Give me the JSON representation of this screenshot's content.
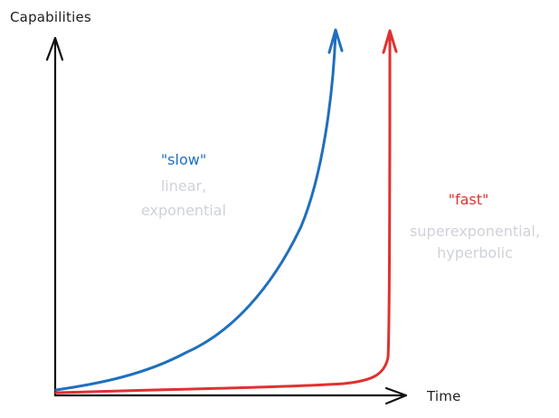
{
  "axes": {
    "y_label": "Capabilities",
    "x_label": "Time"
  },
  "curves": {
    "slow": {
      "title": "\"slow\"",
      "desc_line1": "linear,",
      "desc_line2": "exponential",
      "color": "#1f6fbf"
    },
    "fast": {
      "title": "\"fast\"",
      "desc_line1": "superexponential,",
      "desc_line2": "hyperbolic",
      "color": "#e03131"
    }
  },
  "colors": {
    "axis": "#111111",
    "muted_text": "#cfd2d8"
  }
}
